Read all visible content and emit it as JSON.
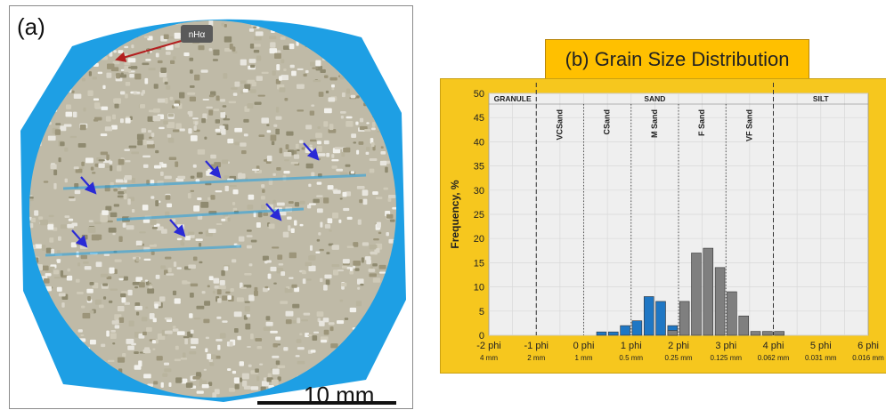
{
  "panel_a": {
    "label": "(a)",
    "scale_bar_label": "10 mm",
    "annotation_label": "nHα",
    "colors": {
      "background": "#1e9fe4",
      "grains": "#dcd9cf",
      "arrow_blue": "#2a2ad6",
      "arrow_red": "#b32020"
    }
  },
  "panel_b": {
    "title": "(b) Grain Size Distribution",
    "colors": {
      "frame": "#f6c71e",
      "plot_bg": "#efefef",
      "title_box": "#ffc000",
      "blue_bars": "#1f77c4",
      "gray_bars": "#7f7f7f"
    }
  },
  "chart_data": {
    "type": "bar",
    "ylabel": "Frequency, %",
    "ylim": [
      0,
      50
    ],
    "yticks": [
      0,
      5,
      10,
      15,
      20,
      25,
      30,
      35,
      40,
      45,
      50
    ],
    "xlim": [
      -2,
      6
    ],
    "xticks": [
      {
        "phi": -2,
        "label": "-2 phi",
        "size": "4 mm"
      },
      {
        "phi": -1,
        "label": "-1 phi",
        "size": "2 mm"
      },
      {
        "phi": 0,
        "label": "0 phi",
        "size": "1 mm"
      },
      {
        "phi": 1,
        "label": "1 phi",
        "size": "0.5 mm"
      },
      {
        "phi": 2,
        "label": "2 phi",
        "size": "0.25 mm"
      },
      {
        "phi": 3,
        "label": "3 phi",
        "size": "0.125 mm"
      },
      {
        "phi": 4,
        "label": "4 phi",
        "size": "0.062 mm"
      },
      {
        "phi": 5,
        "label": "5 phi",
        "size": "0.031 mm"
      },
      {
        "phi": 6,
        "label": "6 phi",
        "size": "0.016 mm"
      }
    ],
    "classes": [
      {
        "label": "GRANULE",
        "from": -2,
        "to": -1
      },
      {
        "label": "SAND",
        "from": -1,
        "to": 4
      },
      {
        "label": "SILT",
        "from": 4,
        "to": 6
      }
    ],
    "subclasses": [
      {
        "label": "VCSand",
        "at": -0.5
      },
      {
        "label": "CSand",
        "at": 0.5
      },
      {
        "label": "M Sand",
        "at": 1.5
      },
      {
        "label": "F Sand",
        "at": 2.5
      },
      {
        "label": "VF Sand",
        "at": 3.5
      }
    ],
    "series": [
      {
        "color": "#1f77c4",
        "x": [
          0.375,
          0.625,
          0.875,
          1.125,
          1.375,
          1.625,
          1.875
        ],
        "values": [
          0.7,
          0.7,
          2,
          3,
          8,
          7,
          2
        ]
      },
      {
        "color": "#7f7f7f",
        "x": [
          1.875,
          2.125,
          2.375,
          2.625,
          2.875,
          3.125,
          3.375,
          3.625,
          3.875,
          4.125
        ],
        "values": [
          1,
          7,
          17,
          18,
          14,
          9,
          4,
          0.8,
          0.8,
          0.8
        ]
      }
    ]
  }
}
